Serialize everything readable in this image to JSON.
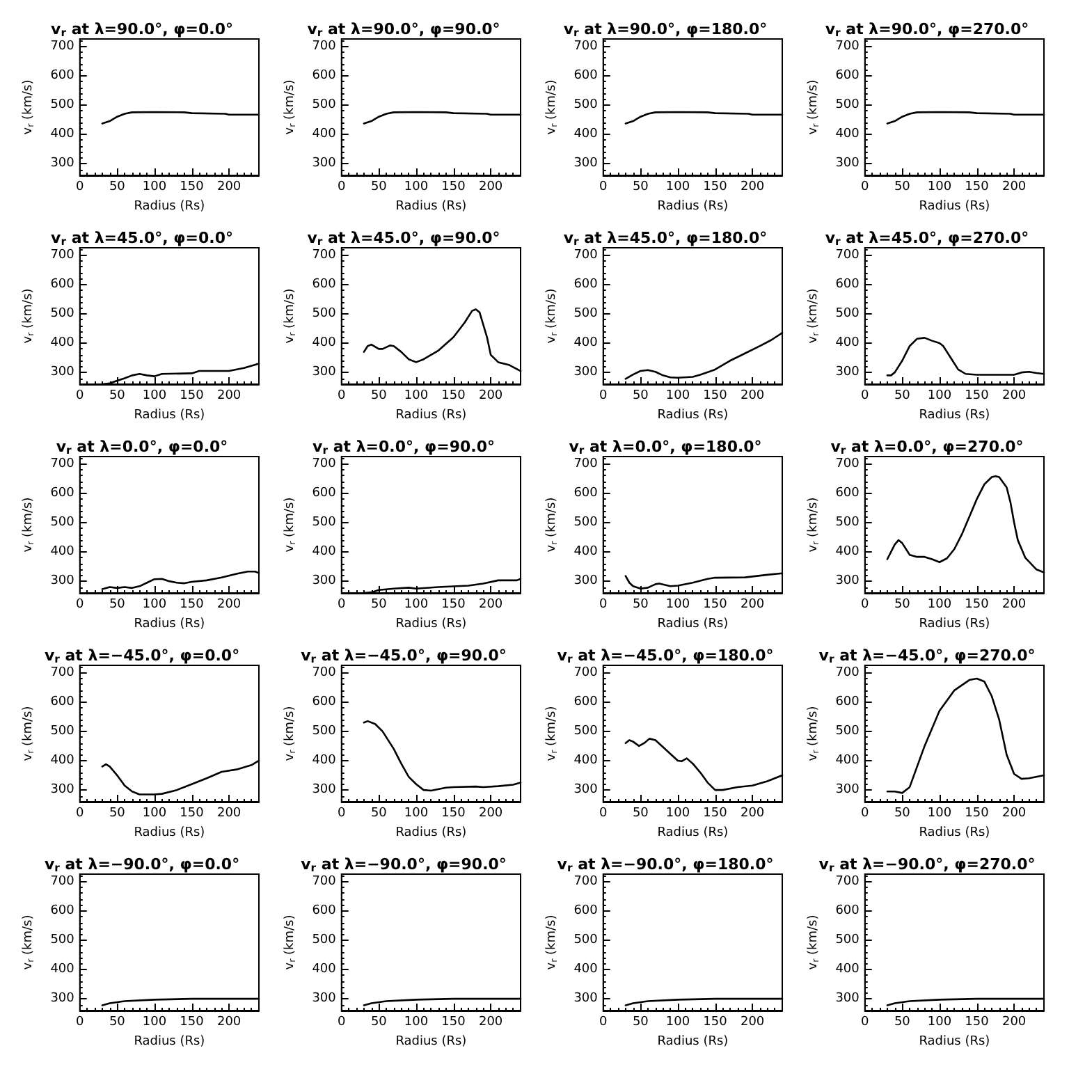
{
  "chart_data": [
    {
      "type": "line",
      "title": "v$_{r}$ at λ=90.0°, φ=0.0°",
      "xlabel": "Radius (Rs)",
      "ylabel": "v$_{r}$ (km/s)",
      "color": "#000000",
      "xlim": [
        0,
        240
      ],
      "ylim": [
        260,
        725
      ],
      "xticks": [
        0,
        50,
        100,
        150,
        200
      ],
      "yticks": [
        300,
        400,
        500,
        600,
        700
      ],
      "x": [
        30,
        40,
        50,
        60,
        70,
        100,
        140,
        150,
        195,
        200,
        240
      ],
      "values": [
        437,
        445,
        460,
        470,
        475,
        476,
        475,
        472,
        470,
        467,
        467
      ]
    },
    {
      "type": "line",
      "title": "v$_{r}$ at λ=90.0°, φ=90.0°",
      "xlabel": "Radius (Rs)",
      "ylabel": "v$_{r}$ (km/s)",
      "color": "#000000",
      "xlim": [
        0,
        240
      ],
      "ylim": [
        260,
        725
      ],
      "xticks": [
        0,
        50,
        100,
        150,
        200
      ],
      "yticks": [
        300,
        400,
        500,
        600,
        700
      ],
      "x": [
        30,
        40,
        50,
        60,
        70,
        100,
        140,
        150,
        195,
        200,
        240
      ],
      "values": [
        437,
        445,
        460,
        470,
        475,
        476,
        475,
        472,
        470,
        467,
        467
      ]
    },
    {
      "type": "line",
      "title": "v$_{r}$ at λ=90.0°, φ=180.0°",
      "xlabel": "Radius (Rs)",
      "ylabel": "v$_{r}$ (km/s)",
      "color": "#000000",
      "xlim": [
        0,
        240
      ],
      "ylim": [
        260,
        725
      ],
      "xticks": [
        0,
        50,
        100,
        150,
        200
      ],
      "yticks": [
        300,
        400,
        500,
        600,
        700
      ],
      "x": [
        30,
        40,
        50,
        60,
        70,
        100,
        140,
        150,
        195,
        200,
        240
      ],
      "values": [
        437,
        445,
        460,
        470,
        475,
        476,
        475,
        472,
        470,
        467,
        467
      ]
    },
    {
      "type": "line",
      "title": "v$_{r}$ at λ=90.0°, φ=270.0°",
      "xlabel": "Radius (Rs)",
      "ylabel": "v$_{r}$ (km/s)",
      "color": "#000000",
      "xlim": [
        0,
        240
      ],
      "ylim": [
        260,
        725
      ],
      "xticks": [
        0,
        50,
        100,
        150,
        200
      ],
      "yticks": [
        300,
        400,
        500,
        600,
        700
      ],
      "x": [
        30,
        40,
        50,
        60,
        70,
        100,
        140,
        150,
        195,
        200,
        240
      ],
      "values": [
        437,
        445,
        460,
        470,
        475,
        476,
        475,
        472,
        470,
        467,
        467
      ]
    },
    {
      "type": "line",
      "title": "v$_{r}$ at λ=45.0°, φ=0.0°",
      "xlabel": "Radius (Rs)",
      "ylabel": "v$_{r}$ (km/s)",
      "color": "#000000",
      "xlim": [
        0,
        240
      ],
      "ylim": [
        260,
        725
      ],
      "xticks": [
        0,
        50,
        100,
        150,
        200
      ],
      "yticks": [
        300,
        400,
        500,
        600,
        700
      ],
      "x": [
        30,
        40,
        50,
        60,
        70,
        80,
        90,
        100,
        110,
        150,
        160,
        200,
        220,
        240
      ],
      "values": [
        260,
        263,
        272,
        280,
        290,
        295,
        290,
        287,
        295,
        297,
        305,
        305,
        315,
        330
      ]
    },
    {
      "type": "line",
      "title": "v$_{r}$ at λ=45.0°, φ=90.0°",
      "xlabel": "Radius (Rs)",
      "ylabel": "v$_{r}$ (km/s)",
      "color": "#000000",
      "xlim": [
        0,
        240
      ],
      "ylim": [
        260,
        725
      ],
      "xticks": [
        0,
        50,
        100,
        150,
        200
      ],
      "yticks": [
        300,
        400,
        500,
        600,
        700
      ],
      "x": [
        30,
        35,
        40,
        50,
        55,
        65,
        70,
        80,
        90,
        100,
        110,
        130,
        150,
        165,
        175,
        180,
        185,
        195,
        200,
        210,
        225,
        240
      ],
      "values": [
        370,
        390,
        395,
        380,
        380,
        392,
        390,
        370,
        345,
        335,
        345,
        375,
        420,
        470,
        510,
        515,
        505,
        420,
        360,
        335,
        325,
        305
      ]
    },
    {
      "type": "line",
      "title": "v$_{r}$ at λ=45.0°, φ=180.0°",
      "xlabel": "Radius (Rs)",
      "ylabel": "v$_{r}$ (km/s)",
      "color": "#000000",
      "xlim": [
        0,
        240
      ],
      "ylim": [
        260,
        725
      ],
      "xticks": [
        0,
        50,
        100,
        150,
        200
      ],
      "yticks": [
        300,
        400,
        500,
        600,
        700
      ],
      "x": [
        30,
        40,
        50,
        60,
        70,
        80,
        90,
        100,
        120,
        130,
        150,
        170,
        190,
        210,
        225,
        240
      ],
      "values": [
        278,
        293,
        305,
        308,
        302,
        290,
        283,
        282,
        285,
        292,
        310,
        340,
        365,
        390,
        410,
        435
      ]
    },
    {
      "type": "line",
      "title": "v$_{r}$ at λ=45.0°, φ=270.0°",
      "xlabel": "Radius (Rs)",
      "ylabel": "v$_{r}$ (km/s)",
      "color": "#000000",
      "xlim": [
        0,
        240
      ],
      "ylim": [
        260,
        725
      ],
      "xticks": [
        0,
        50,
        100,
        150,
        200
      ],
      "yticks": [
        300,
        400,
        500,
        600,
        700
      ],
      "x": [
        30,
        35,
        40,
        50,
        60,
        70,
        80,
        90,
        100,
        105,
        115,
        125,
        135,
        150,
        200,
        210,
        220,
        230,
        240
      ],
      "values": [
        290,
        290,
        300,
        340,
        390,
        415,
        418,
        408,
        400,
        390,
        350,
        310,
        295,
        292,
        292,
        300,
        302,
        298,
        295
      ]
    },
    {
      "type": "line",
      "title": "v$_{r}$ at λ=0.0°, φ=0.0°",
      "xlabel": "Radius (Rs)",
      "ylabel": "v$_{r}$ (km/s)",
      "color": "#000000",
      "xlim": [
        0,
        240
      ],
      "ylim": [
        260,
        725
      ],
      "xticks": [
        0,
        50,
        100,
        150,
        200
      ],
      "yticks": [
        300,
        400,
        500,
        600,
        700
      ],
      "x": [
        30,
        40,
        50,
        60,
        70,
        80,
        90,
        100,
        110,
        120,
        130,
        140,
        150,
        170,
        190,
        210,
        225,
        235,
        240
      ],
      "values": [
        273,
        280,
        277,
        280,
        277,
        283,
        295,
        307,
        308,
        300,
        295,
        293,
        298,
        303,
        313,
        325,
        333,
        333,
        328
      ]
    },
    {
      "type": "line",
      "title": "v$_{r}$ at λ=0.0°, φ=90.0°",
      "xlabel": "Radius (Rs)",
      "ylabel": "v$_{r}$ (km/s)",
      "color": "#000000",
      "xlim": [
        0,
        240
      ],
      "ylim": [
        260,
        725
      ],
      "xticks": [
        0,
        50,
        100,
        150,
        200
      ],
      "yticks": [
        300,
        400,
        500,
        600,
        700
      ],
      "x": [
        30,
        40,
        50,
        70,
        90,
        100,
        130,
        170,
        190,
        210,
        235,
        240
      ],
      "values": [
        260,
        262,
        270,
        275,
        278,
        275,
        280,
        285,
        292,
        303,
        303,
        308
      ]
    },
    {
      "type": "line",
      "title": "v$_{r}$ at λ=0.0°, φ=180.0°",
      "xlabel": "Radius (Rs)",
      "ylabel": "v$_{r}$ (km/s)",
      "color": "#000000",
      "xlim": [
        0,
        240
      ],
      "ylim": [
        260,
        725
      ],
      "xticks": [
        0,
        50,
        100,
        150,
        200
      ],
      "yticks": [
        300,
        400,
        500,
        600,
        700
      ],
      "x": [
        30,
        35,
        40,
        50,
        60,
        70,
        75,
        90,
        100,
        120,
        140,
        150,
        190,
        220,
        240
      ],
      "values": [
        318,
        295,
        283,
        275,
        278,
        290,
        292,
        283,
        285,
        295,
        308,
        312,
        313,
        322,
        327
      ]
    },
    {
      "type": "line",
      "title": "v$_{r}$ at λ=0.0°, φ=270.0°",
      "xlabel": "Radius (Rs)",
      "ylabel": "v$_{r}$ (km/s)",
      "color": "#000000",
      "xlim": [
        0,
        240
      ],
      "ylim": [
        260,
        725
      ],
      "xticks": [
        0,
        50,
        100,
        150,
        200
      ],
      "yticks": [
        300,
        400,
        500,
        600,
        700
      ],
      "x": [
        30,
        40,
        45,
        50,
        60,
        70,
        80,
        90,
        100,
        110,
        120,
        130,
        140,
        150,
        160,
        170,
        175,
        180,
        190,
        195,
        200,
        205,
        215,
        230,
        240
      ],
      "values": [
        375,
        425,
        440,
        430,
        390,
        383,
        383,
        375,
        365,
        378,
        410,
        460,
        520,
        580,
        630,
        655,
        658,
        655,
        620,
        570,
        500,
        440,
        380,
        340,
        330
      ]
    },
    {
      "type": "line",
      "title": "v$_{r}$ at λ=−45.0°, φ=0.0°",
      "xlabel": "Radius (Rs)",
      "ylabel": "v$_{r}$ (km/s)",
      "color": "#000000",
      "xlim": [
        0,
        240
      ],
      "ylim": [
        260,
        725
      ],
      "xticks": [
        0,
        50,
        100,
        150,
        200
      ],
      "yticks": [
        300,
        400,
        500,
        600,
        700
      ],
      "x": [
        30,
        35,
        40,
        50,
        60,
        70,
        80,
        100,
        110,
        130,
        150,
        170,
        190,
        210,
        230,
        240
      ],
      "values": [
        380,
        388,
        380,
        350,
        315,
        295,
        285,
        285,
        287,
        300,
        320,
        340,
        362,
        370,
        385,
        400
      ]
    },
    {
      "type": "line",
      "title": "v$_{r}$ at λ=−45.0°, φ=90.0°",
      "xlabel": "Radius (Rs)",
      "ylabel": "v$_{r}$ (km/s)",
      "color": "#000000",
      "xlim": [
        0,
        240
      ],
      "ylim": [
        260,
        725
      ],
      "xticks": [
        0,
        50,
        100,
        150,
        200
      ],
      "yticks": [
        300,
        400,
        500,
        600,
        700
      ],
      "x": [
        30,
        35,
        45,
        55,
        70,
        80,
        90,
        100,
        110,
        120,
        140,
        150,
        180,
        190,
        210,
        230,
        240
      ],
      "values": [
        530,
        535,
        525,
        500,
        440,
        390,
        345,
        320,
        300,
        298,
        308,
        310,
        312,
        310,
        313,
        318,
        325
      ]
    },
    {
      "type": "line",
      "title": "v$_{r}$ at λ=−45.0°, φ=180.0°",
      "xlabel": "Radius (Rs)",
      "ylabel": "v$_{r}$ (km/s)",
      "color": "#000000",
      "xlim": [
        0,
        240
      ],
      "ylim": [
        260,
        725
      ],
      "xticks": [
        0,
        50,
        100,
        150,
        200
      ],
      "yticks": [
        300,
        400,
        500,
        600,
        700
      ],
      "x": [
        30,
        35,
        40,
        48,
        55,
        62,
        70,
        85,
        100,
        105,
        112,
        120,
        130,
        140,
        150,
        160,
        180,
        200,
        220,
        240
      ],
      "values": [
        460,
        470,
        465,
        450,
        460,
        475,
        470,
        435,
        400,
        398,
        408,
        390,
        360,
        325,
        300,
        300,
        310,
        315,
        330,
        350
      ]
    },
    {
      "type": "line",
      "title": "v$_{r}$ at λ=−45.0°, φ=270.0°",
      "xlabel": "Radius (Rs)",
      "ylabel": "v$_{r}$ (km/s)",
      "color": "#000000",
      "xlim": [
        0,
        240
      ],
      "ylim": [
        260,
        725
      ],
      "xticks": [
        0,
        50,
        100,
        150,
        200
      ],
      "yticks": [
        300,
        400,
        500,
        600,
        700
      ],
      "x": [
        30,
        40,
        50,
        60,
        70,
        80,
        100,
        120,
        140,
        150,
        160,
        170,
        180,
        190,
        200,
        210,
        220,
        240
      ],
      "values": [
        295,
        295,
        290,
        310,
        380,
        450,
        570,
        640,
        675,
        680,
        670,
        620,
        540,
        420,
        355,
        338,
        340,
        350
      ]
    },
    {
      "type": "line",
      "title": "v$_{r}$ at λ=−90.0°, φ=0.0°",
      "xlabel": "Radius (Rs)",
      "ylabel": "v$_{r}$ (km/s)",
      "color": "#000000",
      "xlim": [
        0,
        240
      ],
      "ylim": [
        260,
        725
      ],
      "xticks": [
        0,
        50,
        100,
        150,
        200
      ],
      "yticks": [
        300,
        400,
        500,
        600,
        700
      ],
      "x": [
        30,
        40,
        60,
        100,
        150,
        240
      ],
      "values": [
        278,
        285,
        292,
        297,
        300,
        300
      ]
    },
    {
      "type": "line",
      "title": "v$_{r}$ at λ=−90.0°, φ=90.0°",
      "xlabel": "Radius (Rs)",
      "ylabel": "v$_{r}$ (km/s)",
      "color": "#000000",
      "xlim": [
        0,
        240
      ],
      "ylim": [
        260,
        725
      ],
      "xticks": [
        0,
        50,
        100,
        150,
        200
      ],
      "yticks": [
        300,
        400,
        500,
        600,
        700
      ],
      "x": [
        30,
        40,
        60,
        100,
        150,
        240
      ],
      "values": [
        278,
        285,
        292,
        297,
        300,
        300
      ]
    },
    {
      "type": "line",
      "title": "v$_{r}$ at λ=−90.0°, φ=180.0°",
      "xlabel": "Radius (Rs)",
      "ylabel": "v$_{r}$ (km/s)",
      "color": "#000000",
      "xlim": [
        0,
        240
      ],
      "ylim": [
        260,
        725
      ],
      "xticks": [
        0,
        50,
        100,
        150,
        200
      ],
      "yticks": [
        300,
        400,
        500,
        600,
        700
      ],
      "x": [
        30,
        40,
        60,
        100,
        150,
        240
      ],
      "values": [
        278,
        285,
        292,
        297,
        300,
        300
      ]
    },
    {
      "type": "line",
      "title": "v$_{r}$ at λ=−90.0°, φ=270.0°",
      "xlabel": "Radius (Rs)",
      "ylabel": "v$_{r}$ (km/s)",
      "color": "#000000",
      "xlim": [
        0,
        240
      ],
      "ylim": [
        260,
        725
      ],
      "xticks": [
        0,
        50,
        100,
        150,
        200
      ],
      "yticks": [
        300,
        400,
        500,
        600,
        700
      ],
      "x": [
        30,
        40,
        60,
        100,
        150,
        240
      ],
      "values": [
        278,
        285,
        292,
        297,
        300,
        300
      ]
    }
  ]
}
